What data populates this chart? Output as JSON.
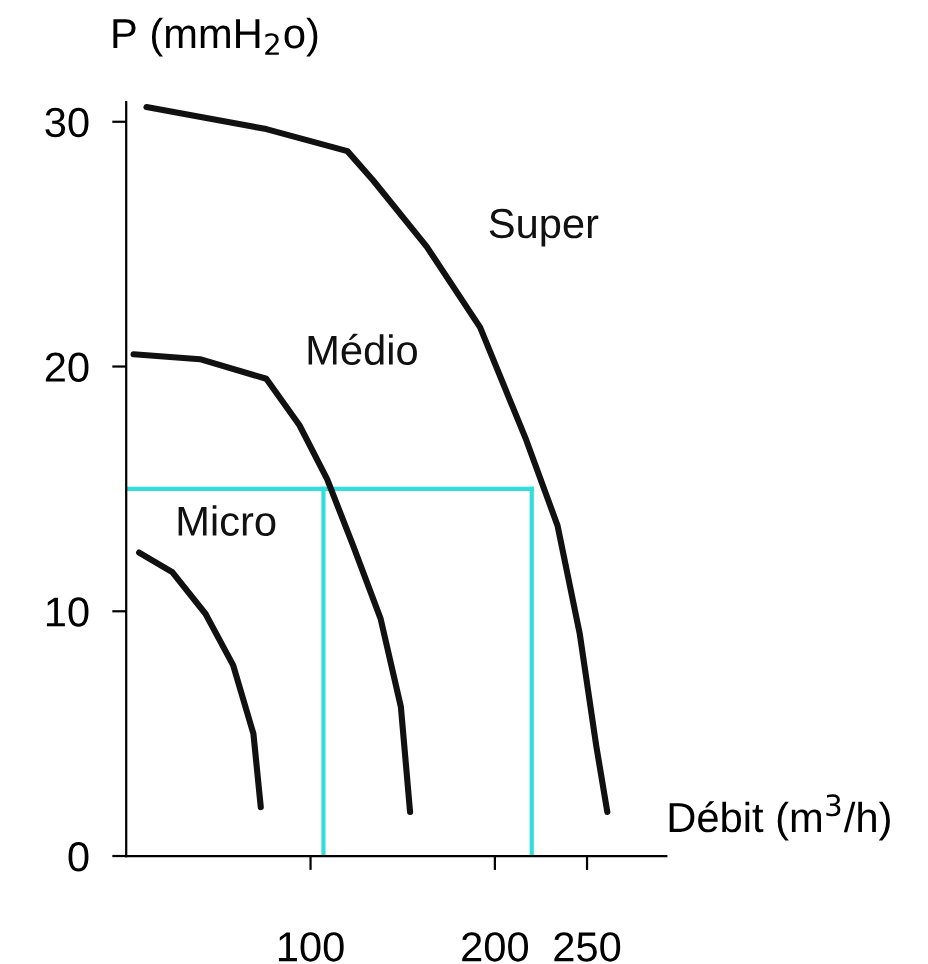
{
  "chart_data": {
    "type": "line",
    "xlabel": "Débit (m$^{3}$/h)",
    "ylabel": "P (mmH$_{2}$o)",
    "series": [
      {
        "name": "Super",
        "color": "#111111",
        "x": [
          11,
          76,
          120,
          134,
          163,
          192,
          217,
          234,
          246,
          255,
          261
        ],
        "values": [
          30.6,
          29.7,
          28.8,
          27.6,
          24.9,
          21.6,
          17,
          13.5,
          9.1,
          4.5,
          1.8
        ]
      },
      {
        "name": "Médio",
        "color": "#111111",
        "x": [
          4,
          40,
          76,
          94,
          109,
          123,
          138,
          149,
          154
        ],
        "values": [
          20.5,
          20.3,
          19.5,
          17.6,
          15.4,
          12.7,
          9.7,
          6.1,
          1.8
        ]
      },
      {
        "name": "Micro",
        "color": "#111111",
        "x": [
          7,
          25,
          43,
          58,
          69,
          73
        ],
        "values": [
          12.4,
          11.6,
          9.9,
          7.8,
          5.0,
          2.0
        ]
      }
    ],
    "xlim": [
      0,
      293
    ],
    "ylim": [
      0,
      30.8
    ],
    "xticks": [
      100,
      200,
      250
    ],
    "yticks": [
      0,
      10,
      20,
      30
    ],
    "ref_lines": [
      {
        "axis": "y",
        "value": 15,
        "color": "#33dddd"
      },
      {
        "axis": "x",
        "value": 107,
        "color": "#33dddd"
      },
      {
        "axis": "x",
        "value": 220,
        "color": "#33dddd"
      }
    ],
    "grid": false,
    "legend": false,
    "marker": "none",
    "line_style": "solid"
  }
}
